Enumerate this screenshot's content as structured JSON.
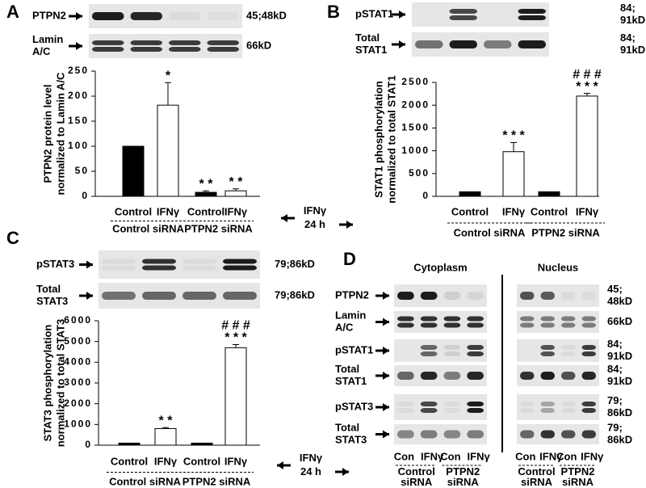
{
  "chart_data": [
    {
      "type": "bar",
      "panel": "A",
      "ylabel": [
        "PTPN2 protein level",
        "normalized to Lamin A/C"
      ],
      "categories": [
        "Control",
        "IFNγ",
        "Control",
        "IFNγ"
      ],
      "values": [
        100,
        182,
        8,
        11
      ],
      "errors": [
        null,
        45,
        3,
        4
      ],
      "colors": [
        "#000000",
        "#ffffff",
        "#000000",
        "#ffffff"
      ],
      "ylim": [
        0,
        250
      ],
      "yticks": [
        0,
        50,
        100,
        150,
        200,
        250
      ],
      "annotations": [
        null,
        [
          "*"
        ],
        [
          "* *"
        ],
        [
          "* *"
        ]
      ],
      "groups": [
        "Control siRNA",
        "PTPN2 siRNA"
      ],
      "treatment": [
        "IFNγ",
        "24 h"
      ]
    },
    {
      "type": "bar",
      "panel": "B",
      "ylabel": [
        "STAT1 phosphorylation",
        "normalized to total STAT1"
      ],
      "categories": [
        "Control",
        "IFNγ",
        "Control",
        "IFNγ"
      ],
      "values": [
        100,
        980,
        100,
        2200
      ],
      "errors": [
        null,
        200,
        null,
        60
      ],
      "colors": [
        "#000000",
        "#ffffff",
        "#000000",
        "#ffffff"
      ],
      "ylim": [
        0,
        2500
      ],
      "yticks": [
        0,
        500,
        1000,
        1500,
        2000,
        2500
      ],
      "annotations": [
        null,
        [
          "* * *"
        ],
        null,
        [
          "# # #",
          "* * *"
        ]
      ],
      "groups": [
        "Control siRNA",
        "PTPN2 siRNA"
      ]
    },
    {
      "type": "bar",
      "panel": "C",
      "ylabel": [
        "STAT3 phosphorylation",
        "normalized to total STAT3"
      ],
      "categories": [
        "Control",
        "IFNγ",
        "Control",
        "IFNγ"
      ],
      "values": [
        100,
        800,
        100,
        4700
      ],
      "errors": [
        null,
        50,
        null,
        150
      ],
      "colors": [
        "#000000",
        "#ffffff",
        "#000000",
        "#ffffff"
      ],
      "ylim": [
        0,
        6000
      ],
      "yticks": [
        0,
        1000,
        2000,
        3000,
        4000,
        5000,
        6000
      ],
      "annotations": [
        null,
        [
          "* *"
        ],
        null,
        [
          "# # #",
          "* * *"
        ]
      ],
      "groups": [
        "Control siRNA",
        "PTPN2 siRNA"
      ],
      "treatment": [
        "IFNγ",
        "24 h"
      ]
    }
  ],
  "blots": [
    {
      "rows": [
        {
          "label": [
            "PTPN2"
          ],
          "kd": [
            "45;48kD"
          ]
        },
        {
          "label": [
            "Lamin",
            "A/C"
          ],
          "kd": [
            "66kD"
          ]
        }
      ]
    },
    {
      "rows": [
        {
          "label": [
            "pSTAT1"
          ],
          "kd": [
            "84;",
            "91kD"
          ]
        },
        {
          "label": [
            "Total",
            "STAT1"
          ],
          "kd": [
            "84;",
            "91kD"
          ]
        }
      ]
    },
    {
      "rows": [
        {
          "label": [
            "pSTAT3"
          ],
          "kd": [
            "79;86kD"
          ]
        },
        {
          "label": [
            "Total",
            "STAT3"
          ],
          "kd": [
            "79;86kD"
          ]
        }
      ]
    }
  ],
  "blot_panel": {
    "panel": "D",
    "headers": [
      "Cytoplasm",
      "Nucleus"
    ],
    "rows": [
      {
        "label": [
          "PTPN2"
        ],
        "kd": [
          "45;",
          "48kD"
        ]
      },
      {
        "label": [
          "Lamin",
          "A/C"
        ],
        "kd": [
          "66kD"
        ]
      },
      {
        "label": [
          "pSTAT1"
        ],
        "kd": [
          "84;",
          "91kD"
        ]
      },
      {
        "label": [
          "Total",
          "STAT1"
        ],
        "kd": [
          "84;",
          "91kD"
        ]
      },
      {
        "label": [
          "pSTAT3"
        ],
        "kd": [
          "79;",
          "86kD"
        ]
      },
      {
        "label": [
          "Total",
          "STAT3"
        ],
        "kd": [
          "79;",
          "86kD"
        ]
      }
    ],
    "lanes": [
      "Con",
      "IFNγ",
      "Con",
      "IFNγ"
    ],
    "groups": [
      [
        "Control",
        "siRNA"
      ],
      [
        "PTPN2",
        "siRNA"
      ]
    ]
  }
}
